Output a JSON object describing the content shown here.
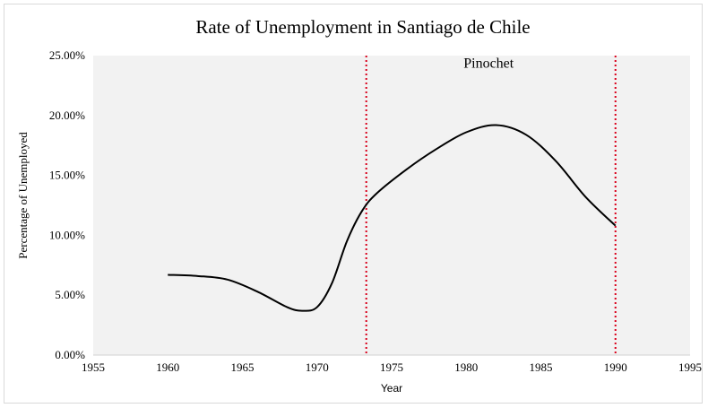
{
  "chart_data": {
    "type": "line",
    "title": "Rate of Unemployment in Santiago de Chile",
    "xlabel": "Year",
    "ylabel": "Percentage of Unemployed",
    "xlim": [
      1955,
      1995
    ],
    "ylim": [
      0,
      25
    ],
    "x_ticks": [
      1955,
      1960,
      1965,
      1970,
      1975,
      1980,
      1985,
      1990,
      1995
    ],
    "y_ticks": [
      0,
      5,
      10,
      15,
      20,
      25
    ],
    "x_tick_labels": [
      "1955",
      "1960",
      "1965",
      "1970",
      "1975",
      "1980",
      "1985",
      "1990",
      "1995"
    ],
    "y_tick_labels": [
      "0.00%",
      "5.00%",
      "10.00%",
      "15.00%",
      "20.00%",
      "25.00%"
    ],
    "series": [
      {
        "x": [
          1960,
          1962,
          1964,
          1966,
          1968,
          1969,
          1970,
          1971,
          1972,
          1973,
          1974,
          1976,
          1978,
          1980,
          1982,
          1984,
          1986,
          1988,
          1990
        ],
        "y": [
          6.7,
          6.6,
          6.3,
          5.3,
          4.0,
          3.7,
          4.0,
          6.0,
          9.5,
          12.0,
          13.5,
          15.5,
          17.2,
          18.6,
          19.2,
          18.4,
          16.2,
          13.2,
          10.8
        ],
        "color": "#000000"
      }
    ],
    "vertical_lines": [
      {
        "x": 1973.3,
        "color": "#d9001b",
        "style": "dotted"
      },
      {
        "x": 1990,
        "color": "#d9001b",
        "style": "dotted"
      }
    ],
    "annotations": [
      {
        "text": "Pinochet",
        "x": 1981.5,
        "y": 24.0
      }
    ],
    "plot_background": "#f2f2f2",
    "grid": false,
    "legend": "none"
  }
}
